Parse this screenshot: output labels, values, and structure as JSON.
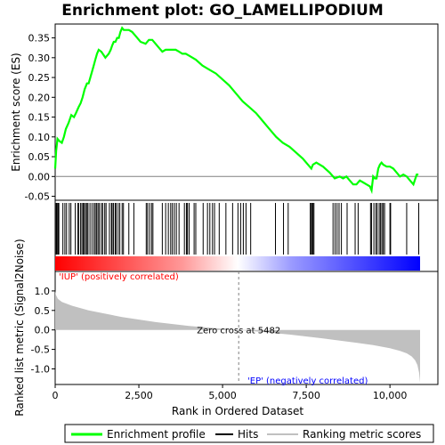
{
  "chart_data": {
    "type": "line",
    "title": "Enrichment plot: GO_LAMELLIPODIUM",
    "n_genes": 10900,
    "top_panel": {
      "ylabel": "Enrichment score (ES)",
      "ylim": [
        -0.06,
        0.385
      ],
      "yticks": [
        -0.05,
        0.0,
        0.05,
        0.1,
        0.15,
        0.2,
        0.25,
        0.3,
        0.35
      ],
      "ytick_labels": [
        "-0.05",
        "0.00",
        "0.05",
        "0.10",
        "0.15",
        "0.20",
        "0.25",
        "0.30",
        "0.35"
      ],
      "series": [
        {
          "name": "Enrichment profile",
          "color": "#00ff00",
          "x": [
            0,
            30,
            70,
            120,
            200,
            260,
            320,
            400,
            480,
            560,
            620,
            700,
            760,
            820,
            880,
            950,
            1000,
            1050,
            1100,
            1150,
            1200,
            1250,
            1300,
            1380,
            1500,
            1600,
            1660,
            1700,
            1750,
            1800,
            1850,
            1900,
            1950,
            2000,
            2050,
            2100,
            2200,
            2300,
            2400,
            2550,
            2700,
            2800,
            2900,
            3000,
            3100,
            3200,
            3300,
            3400,
            3500,
            3600,
            3700,
            3800,
            3900,
            4000,
            4200,
            4400,
            4600,
            4800,
            5000,
            5200,
            5400,
            5600,
            5800,
            6000,
            6200,
            6400,
            6600,
            6800,
            7000,
            7200,
            7400,
            7600,
            7650,
            7700,
            7800,
            8000,
            8200,
            8350,
            8500,
            8600,
            8700,
            8800,
            8900,
            9000,
            9100,
            9200,
            9300,
            9400,
            9450,
            9500,
            9550,
            9600,
            9650,
            9700,
            9750,
            9800,
            9900,
            10000,
            10100,
            10200,
            10300,
            10400,
            10500,
            10600,
            10700,
            10800,
            10850
          ],
          "y": [
            0.02,
            0.065,
            0.095,
            0.09,
            0.085,
            0.1,
            0.12,
            0.135,
            0.155,
            0.15,
            0.16,
            0.175,
            0.185,
            0.2,
            0.22,
            0.235,
            0.235,
            0.25,
            0.265,
            0.28,
            0.295,
            0.31,
            0.32,
            0.315,
            0.3,
            0.31,
            0.32,
            0.33,
            0.34,
            0.34,
            0.35,
            0.35,
            0.365,
            0.375,
            0.37,
            0.37,
            0.37,
            0.365,
            0.355,
            0.34,
            0.335,
            0.345,
            0.345,
            0.335,
            0.325,
            0.315,
            0.32,
            0.32,
            0.32,
            0.32,
            0.315,
            0.31,
            0.31,
            0.305,
            0.295,
            0.28,
            0.27,
            0.26,
            0.245,
            0.23,
            0.21,
            0.19,
            0.175,
            0.16,
            0.14,
            0.12,
            0.1,
            0.085,
            0.075,
            0.06,
            0.045,
            0.025,
            0.02,
            0.03,
            0.035,
            0.025,
            0.01,
            -0.005,
            0.0,
            -0.005,
            0.0,
            -0.01,
            -0.02,
            -0.02,
            -0.01,
            -0.015,
            -0.02,
            -0.025,
            -0.035,
            0.0,
            -0.005,
            -0.005,
            0.02,
            0.03,
            0.035,
            0.03,
            0.025,
            0.025,
            0.02,
            0.01,
            0.0,
            0.005,
            0.0,
            -0.01,
            -0.02,
            0.005,
            0.005
          ]
        }
      ]
    },
    "hits": [
      10,
      40,
      60,
      90,
      110,
      230,
      290,
      340,
      420,
      470,
      600,
      680,
      700,
      760,
      800,
      840,
      870,
      910,
      950,
      980,
      1040,
      1100,
      1160,
      1200,
      1240,
      1280,
      1320,
      1380,
      1420,
      1480,
      1520,
      1620,
      1680,
      1700,
      1740,
      1790,
      1820,
      1880,
      1930,
      2000,
      2040,
      2200,
      2350,
      2720,
      2760,
      2820,
      2880,
      2920,
      3200,
      3300,
      3380,
      3450,
      3500,
      3560,
      3620,
      3700,
      3860,
      3920,
      3950,
      4000,
      4150,
      4200,
      4420,
      4550,
      4620,
      4700,
      4760,
      4900,
      5100,
      5300,
      5460,
      5540,
      5620,
      5700,
      5840,
      6580,
      6820,
      6960,
      7620,
      7650,
      7680,
      7700,
      7730,
      8300,
      8360,
      8420,
      8480,
      8550,
      8720,
      8960,
      9050,
      9420,
      9450,
      9520,
      9580,
      9620,
      9680,
      9720,
      9760,
      9800,
      9840,
      10000,
      10020,
      10500,
      10860
    ],
    "ranked_metric": {
      "ylabel": "Ranked list metric (Signal2Noise)",
      "xlabel": "Rank in Ordered Dataset",
      "ylim": [
        -1.4,
        1.5
      ],
      "yticks": [
        -1.0,
        -0.5,
        0.0,
        0.5,
        1.0
      ],
      "ytick_labels": [
        "-1.0",
        "-0.5",
        "0.0",
        "0.5",
        "1.0"
      ],
      "xticks": [
        0,
        2500,
        5000,
        7500,
        10000
      ],
      "xtick_labels": [
        "0",
        "2,500",
        "5,000",
        "7,500",
        "10,000"
      ],
      "x": [
        0,
        20,
        80,
        200,
        500,
        1000,
        2000,
        3000,
        4000,
        5000,
        5482,
        6000,
        7000,
        8000,
        9000,
        9500,
        10000,
        10300,
        10500,
        10650,
        10750,
        10820,
        10870,
        10900
      ],
      "y": [
        1.0,
        0.9,
        0.8,
        0.72,
        0.62,
        0.5,
        0.33,
        0.2,
        0.1,
        0.03,
        0.0,
        -0.04,
        -0.12,
        -0.22,
        -0.33,
        -0.39,
        -0.47,
        -0.54,
        -0.6,
        -0.68,
        -0.78,
        -0.9,
        -1.1,
        -1.35
      ],
      "fill_color": "#c0c0c0",
      "zero_cross_label": "Zero cross at 5482",
      "zero_cross": 5482,
      "pos_label": "'IUP' (positively correlated)",
      "neg_label": "'EP' (negatively correlated)",
      "pos_color": "#ff0000",
      "neg_color": "#0000ff"
    },
    "legend": {
      "placement": "bottom",
      "items": [
        {
          "label": "Enrichment profile",
          "color": "#00ff00",
          "kind": "line"
        },
        {
          "label": "Hits",
          "color": "#000000",
          "kind": "line"
        },
        {
          "label": "Ranking metric scores",
          "color": "#c0c0c0",
          "kind": "line"
        }
      ]
    }
  }
}
